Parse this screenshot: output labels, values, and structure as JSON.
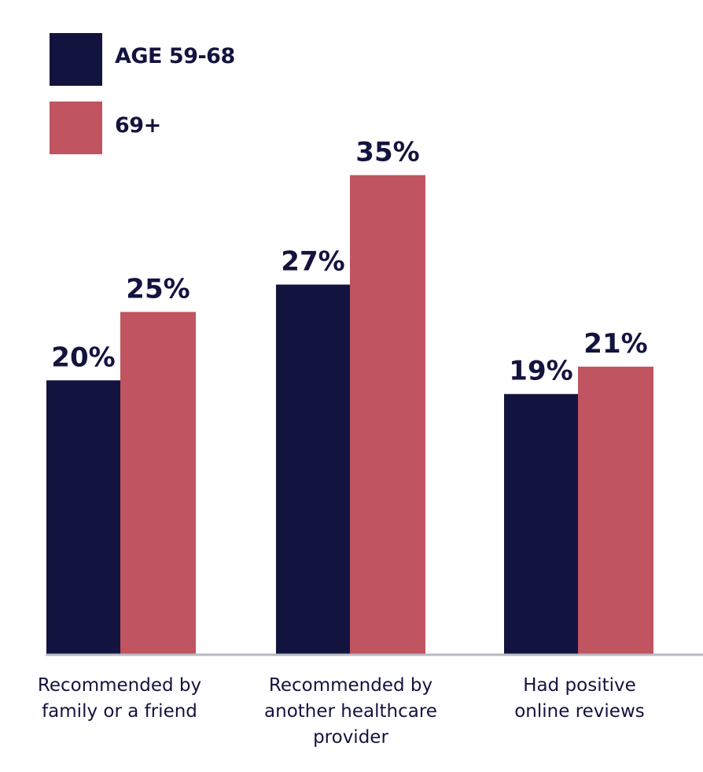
{
  "chart_data": {
    "type": "bar",
    "title": "",
    "xlabel": "",
    "ylabel": "",
    "categories": [
      "Recommended by\nfamily or a friend",
      "Recommended by\nanother healthcare\nprovider",
      "Had positive\nonline reviews"
    ],
    "series": [
      {
        "name": "AGE 59-68",
        "color": "#131340",
        "values": [
          20,
          27,
          19
        ],
        "labels": [
          "20%",
          "27%",
          "19%"
        ]
      },
      {
        "name": "69+",
        "color": "#c05460",
        "values": [
          25,
          35,
          21
        ],
        "labels": [
          "25%",
          "35%",
          "21%"
        ]
      }
    ],
    "ylim": [
      0,
      47.8
    ],
    "grid": false,
    "legend": "top-left",
    "axis_color": "#b9b9c2",
    "label_color": "#131340"
  }
}
